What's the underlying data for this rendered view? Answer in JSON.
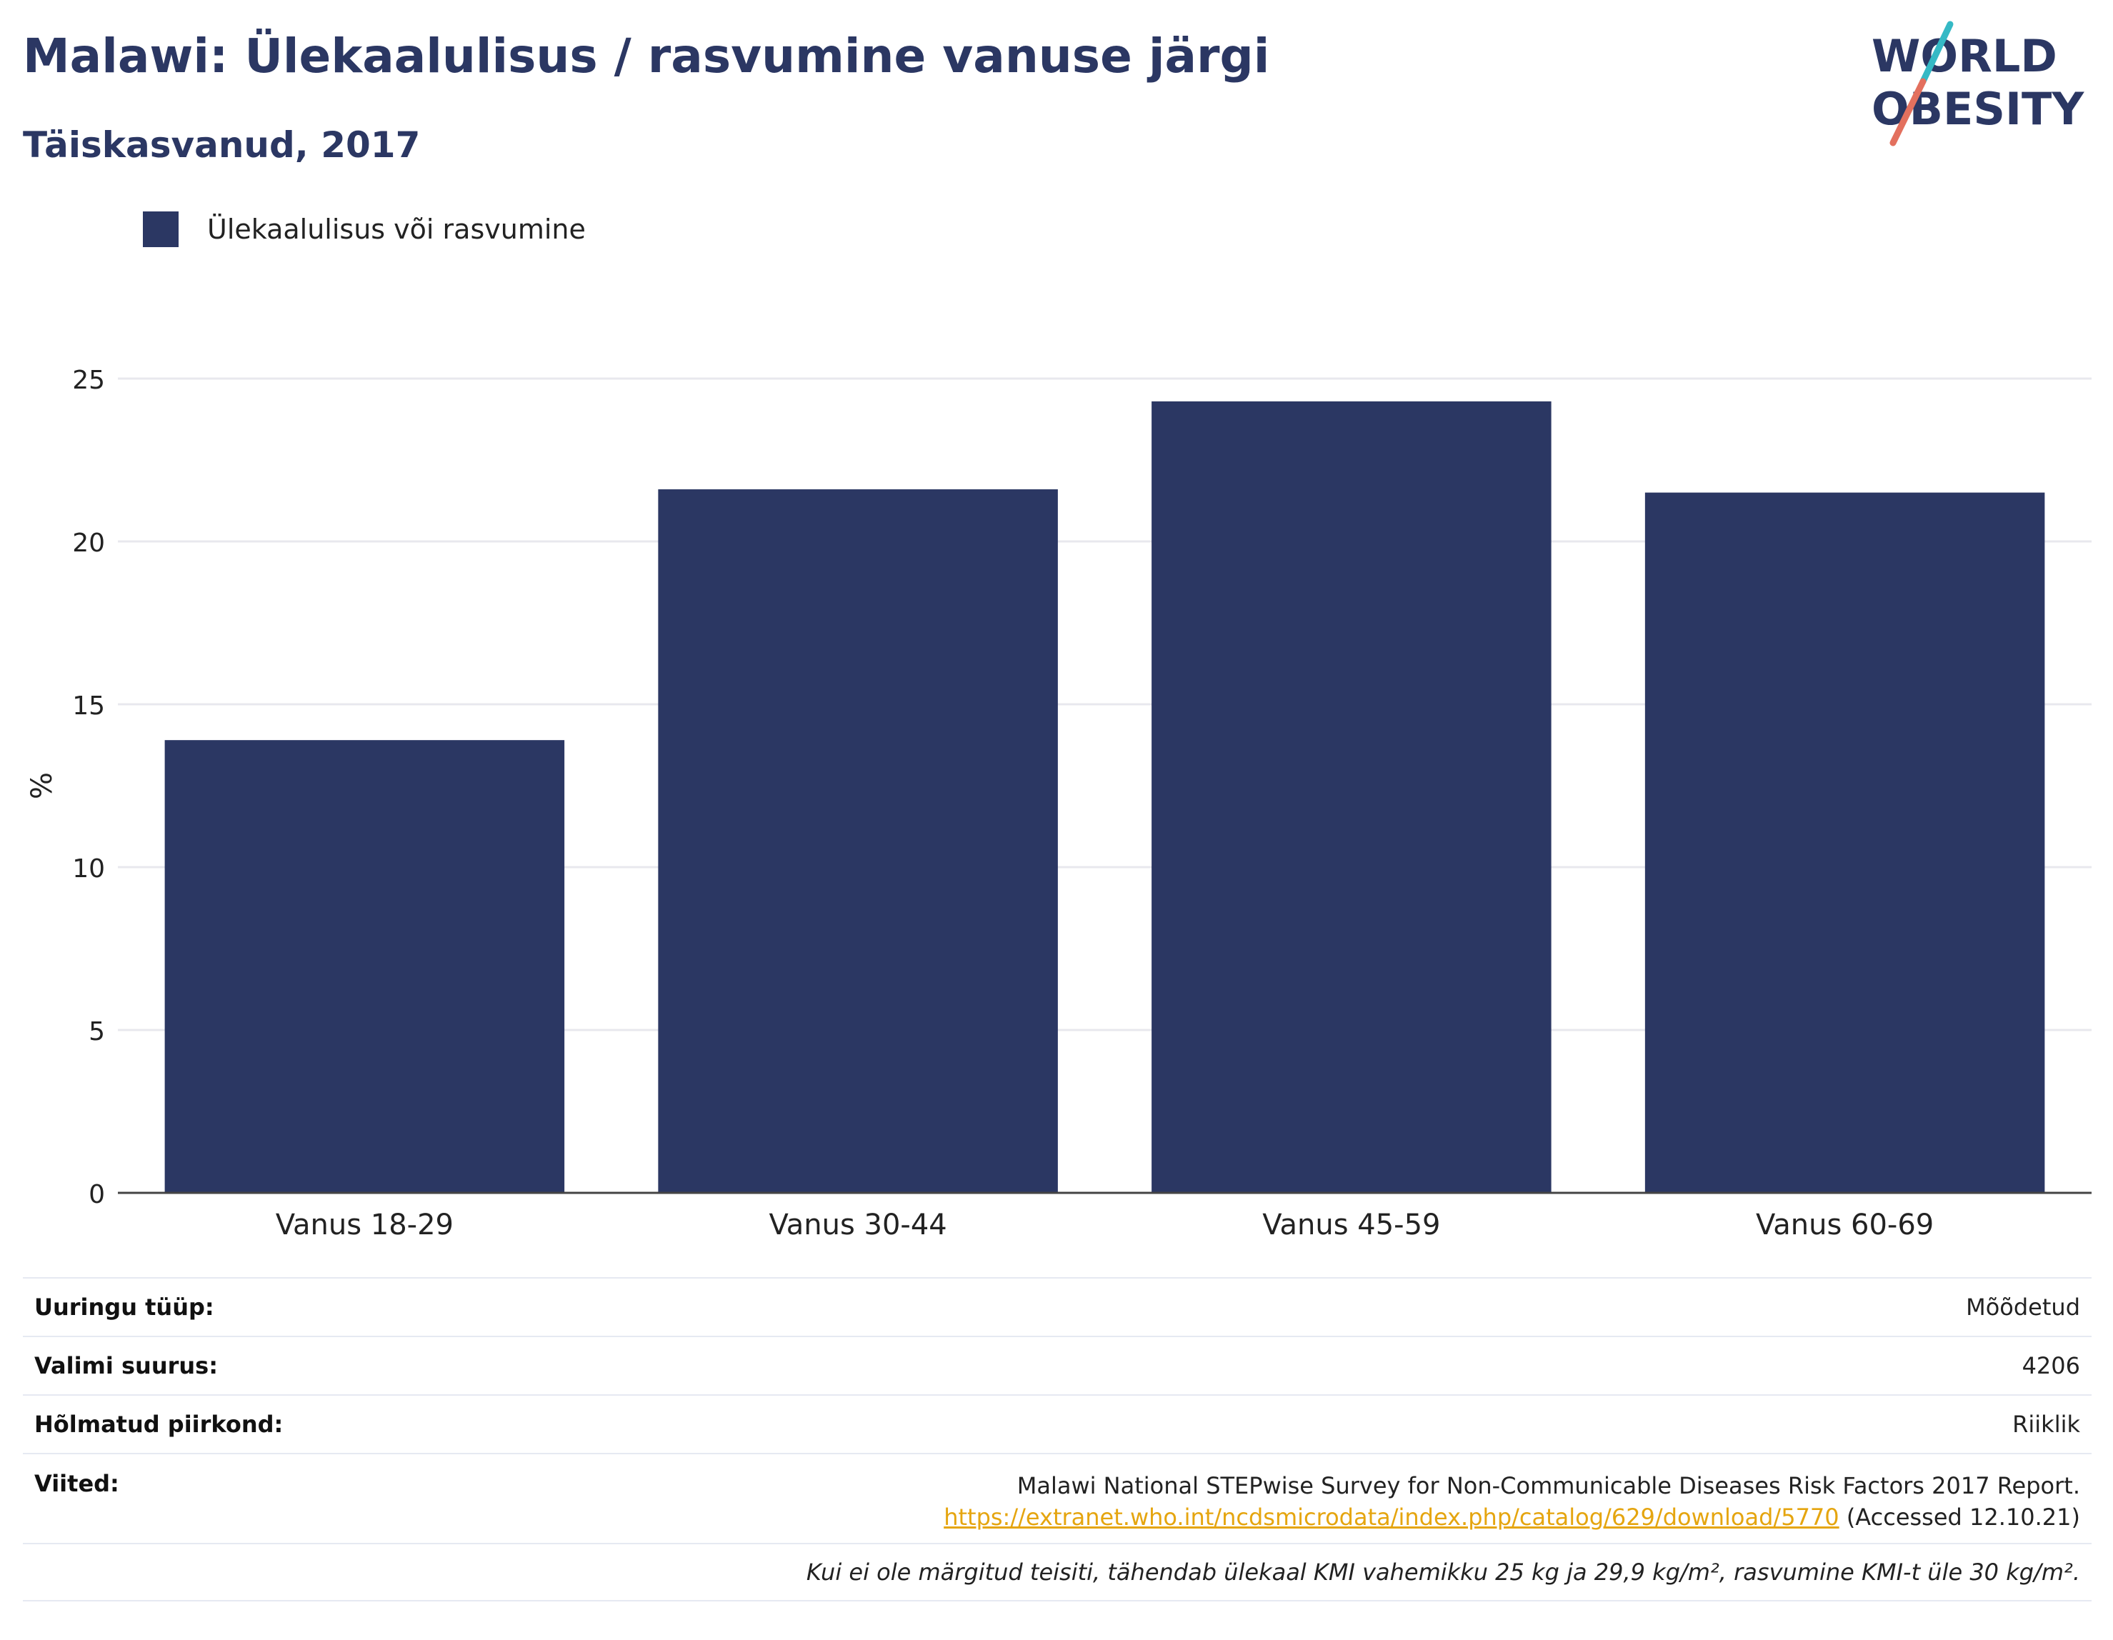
{
  "header": {
    "title": "Malawi: Ülekaalulisus / rasvumine vanuse järgi",
    "subtitle": "Täiskasvanud, 2017"
  },
  "logo": {
    "line1": "WORLD",
    "line2": "OBESITY"
  },
  "colors": {
    "bar": "#2b3763",
    "title": "#2b3763",
    "grid": "#e8e8ee",
    "link": "#e5a50f"
  },
  "chart_data": {
    "type": "bar",
    "categories": [
      "Vanus 18-29",
      "Vanus 30-44",
      "Vanus 45-59",
      "Vanus 60-69"
    ],
    "series": [
      {
        "name": "Ülekaalulisus või rasvumine",
        "values": [
          13.9,
          21.6,
          24.3,
          21.5
        ]
      }
    ],
    "ylabel": "%",
    "ylim": [
      0,
      25
    ],
    "yticks": [
      0,
      5,
      10,
      15,
      20,
      25
    ],
    "grid": true,
    "legend": "top-left"
  },
  "info": {
    "rows": [
      {
        "label": "Uuringu tüüp:",
        "value": "Mõõdetud"
      },
      {
        "label": "Valimi suurus:",
        "value": "4206"
      },
      {
        "label": "Hõlmatud piirkond:",
        "value": "Riiklik"
      }
    ],
    "references": {
      "label": "Viited:",
      "text": "Malawi National STEPwise Survey for Non-Communicable Diseases Risk Factors 2017 Report.",
      "link": "https://extranet.who.int/ncdsmicrodata/index.php/catalog/629/download/5770",
      "accessed": "(Accessed 12.10.21)"
    },
    "note": "Kui ei ole märgitud teisiti, tähendab ülekaal KMI vahemikku 25 kg ja 29,9 kg/m², rasvumine KMI-t üle 30 kg/m²."
  }
}
